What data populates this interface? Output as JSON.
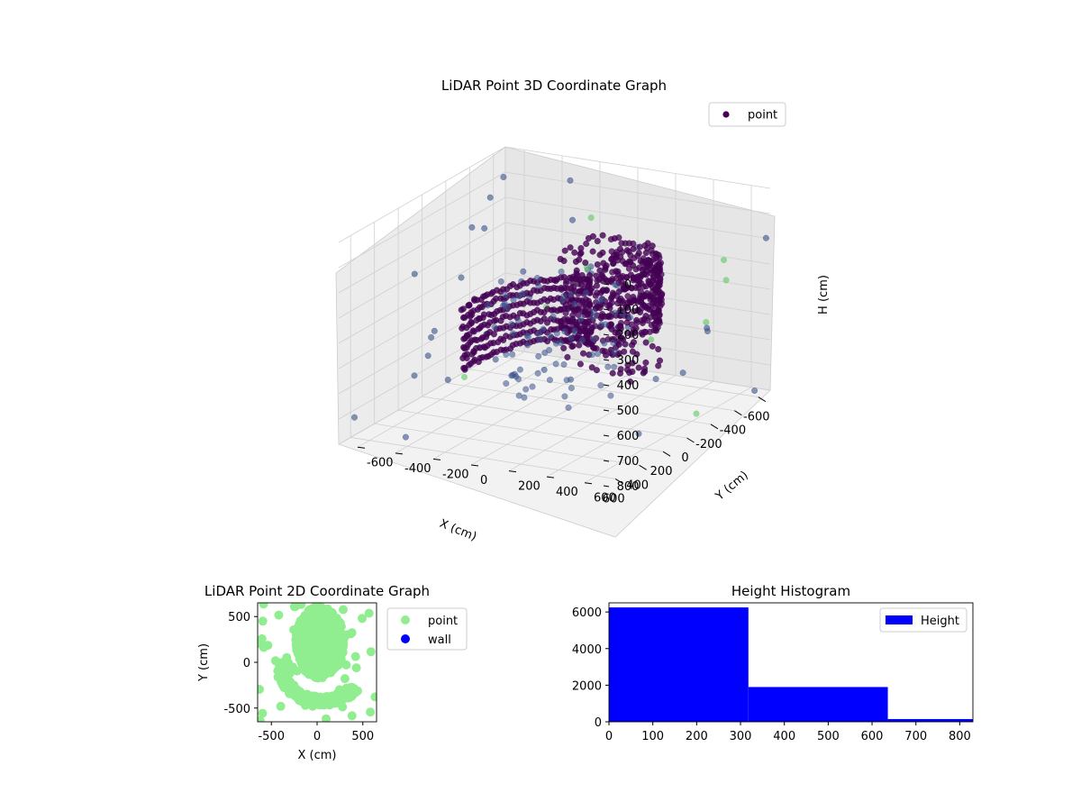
{
  "colors": {
    "point3d_dark": "#440154",
    "point3d_mid": "#3b528b",
    "point3d_light": "#5ec962",
    "point2d": "#90ee90",
    "wall": "#0000ff",
    "hist": "#0000ff",
    "pane": "#f2f2f2",
    "grid": "#d0d0d0"
  },
  "chart_data": [
    {
      "type": "scatter",
      "title": "LiDAR Point 3D Coordinate Graph",
      "xlabel": "X (cm)",
      "ylabel": "Y (cm)",
      "zlabel": "H (cm)",
      "xlim": [
        -700,
        700
      ],
      "ylim": [
        -700,
        700
      ],
      "zlim": [
        0,
        800
      ],
      "z_inverted": true,
      "x_ticks": [
        "-600",
        "-400",
        "-200",
        "0",
        "200",
        "400",
        "600"
      ],
      "y_ticks": [
        "-600",
        "-400",
        "-200",
        "0",
        "200",
        "400",
        "600"
      ],
      "z_ticks": [
        "0",
        "100",
        "200",
        "300",
        "400",
        "500",
        "600",
        "700",
        "800"
      ],
      "legend": {
        "entries": [
          "point"
        ],
        "placement": "top-right"
      },
      "grid": true,
      "colormap": "viridis"
    },
    {
      "type": "scatter",
      "title": "LiDAR Point 2D Coordinate Graph",
      "xlabel": "X (cm)",
      "ylabel": "Y (cm)",
      "xlim": [
        -650,
        650
      ],
      "ylim": [
        -650,
        650
      ],
      "x_ticks": [
        "-500",
        "0",
        "500"
      ],
      "y_ticks": [
        "500",
        "0",
        "-500"
      ],
      "legend": {
        "entries": [
          "point",
          "wall"
        ],
        "placement": "outside-right"
      },
      "series": [
        {
          "name": "point"
        },
        {
          "name": "wall",
          "values": []
        }
      ]
    },
    {
      "type": "bar",
      "title": "Height Histogram",
      "xlabel": "",
      "ylabel": "",
      "xlim": [
        0,
        830
      ],
      "ylim": [
        0,
        6500
      ],
      "bins": [
        {
          "from": 0,
          "to": 318,
          "value": 6250
        },
        {
          "from": 318,
          "to": 636,
          "value": 1900
        },
        {
          "from": 636,
          "to": 830,
          "value": 150
        }
      ],
      "x_ticks": [
        "0",
        "100",
        "200",
        "300",
        "400",
        "500",
        "600",
        "700",
        "800"
      ],
      "y_ticks": [
        "0",
        "2000",
        "4000",
        "6000"
      ],
      "legend": {
        "entries": [
          "Height"
        ],
        "placement": "top-right"
      }
    }
  ]
}
